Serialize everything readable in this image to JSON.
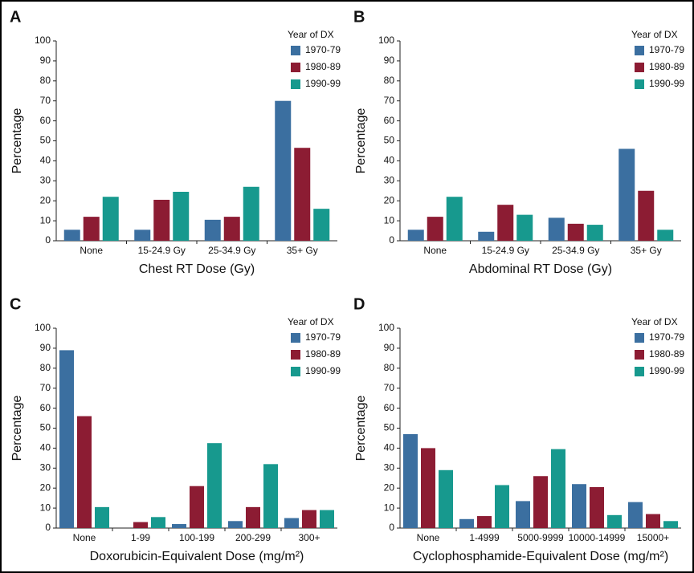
{
  "chart_data": [
    {
      "type": "bar",
      "panel": "A",
      "ylabel": "Percentage",
      "xlabel": "Chest RT Dose (Gy)",
      "legend_title": "Year of DX",
      "legend": "upper right",
      "categories": [
        "None",
        "15-24.9 Gy",
        "25-34.9 Gy",
        "35+ Gy"
      ],
      "series": [
        {
          "name": "1970-79",
          "color": "#3b6fa0",
          "values": [
            5.5,
            5.5,
            10.5,
            70
          ]
        },
        {
          "name": "1980-89",
          "color": "#8c1c33",
          "values": [
            12,
            20.5,
            12,
            46.5
          ]
        },
        {
          "name": "1990-99",
          "color": "#17998e",
          "values": [
            22,
            24.5,
            27,
            16
          ]
        }
      ],
      "ylim": [
        0,
        100
      ],
      "yticks": [
        0,
        10,
        20,
        30,
        40,
        50,
        60,
        70,
        80,
        90,
        100
      ]
    },
    {
      "type": "bar",
      "panel": "B",
      "ylabel": "Percentage",
      "xlabel": "Abdominal RT Dose (Gy)",
      "legend_title": "Year of DX",
      "legend": "upper right",
      "categories": [
        "None",
        "15-24.9 Gy",
        "25-34.9 Gy",
        "35+ Gy"
      ],
      "series": [
        {
          "name": "1970-79",
          "color": "#3b6fa0",
          "values": [
            5.5,
            4.5,
            11.5,
            46
          ]
        },
        {
          "name": "1980-89",
          "color": "#8c1c33",
          "values": [
            12,
            18,
            8.5,
            25
          ]
        },
        {
          "name": "1990-99",
          "color": "#17998e",
          "values": [
            22,
            13,
            8,
            5.5
          ]
        }
      ],
      "ylim": [
        0,
        100
      ],
      "yticks": [
        0,
        10,
        20,
        30,
        40,
        50,
        60,
        70,
        80,
        90,
        100
      ]
    },
    {
      "type": "bar",
      "panel": "C",
      "ylabel": "Percentage",
      "xlabel": "Doxorubicin-Equivalent Dose (mg/m²)",
      "legend_title": "Year of DX",
      "legend": "upper right",
      "categories": [
        "None",
        "1-99",
        "100-199",
        "200-299",
        "300+"
      ],
      "series": [
        {
          "name": "1970-79",
          "color": "#3b6fa0",
          "values": [
            89,
            0,
            2,
            3.5,
            5
          ]
        },
        {
          "name": "1980-89",
          "color": "#8c1c33",
          "values": [
            56,
            3,
            21,
            10.5,
            9
          ]
        },
        {
          "name": "1990-99",
          "color": "#17998e",
          "values": [
            10.5,
            5.5,
            42.5,
            32,
            9
          ]
        }
      ],
      "ylim": [
        0,
        100
      ],
      "yticks": [
        0,
        10,
        20,
        30,
        40,
        50,
        60,
        70,
        80,
        90,
        100
      ]
    },
    {
      "type": "bar",
      "panel": "D",
      "ylabel": "Percentage",
      "xlabel": "Cyclophosphamide-Equivalent Dose (mg/m²)",
      "legend_title": "Year of DX",
      "legend": "upper right",
      "categories": [
        "None",
        "1-4999",
        "5000-9999",
        "10000-14999",
        "15000+"
      ],
      "series": [
        {
          "name": "1970-79",
          "color": "#3b6fa0",
          "values": [
            47,
            4.5,
            13.5,
            22,
            13
          ]
        },
        {
          "name": "1980-89",
          "color": "#8c1c33",
          "values": [
            40,
            6,
            26,
            20.5,
            7
          ]
        },
        {
          "name": "1990-99",
          "color": "#17998e",
          "values": [
            29,
            21.5,
            39.5,
            6.5,
            3.5
          ]
        }
      ],
      "ylim": [
        0,
        100
      ],
      "yticks": [
        0,
        10,
        20,
        30,
        40,
        50,
        60,
        70,
        80,
        90,
        100
      ]
    }
  ]
}
